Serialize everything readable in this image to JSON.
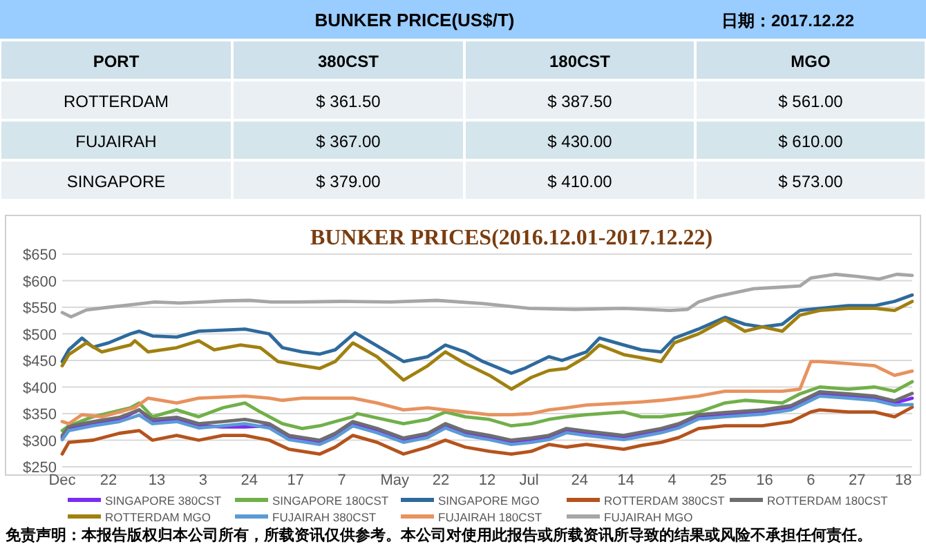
{
  "chart_data": [
    {
      "type": "other",
      "title": "BUNKER  PRICE(US$/T)",
      "subtitle": "日期：2017.12.22",
      "xlabel": "PORT",
      "categories": [
        "ROTTERDAM",
        "FUJAIRAH",
        "SINGAPORE"
      ],
      "series": [
        {
          "name": "380CST",
          "colors": [
            "#e9eff3",
            "#d5e5ec",
            "#e9eff3"
          ],
          "values": [
            361.5,
            367,
            379
          ],
          "value_labels": [
            "$ 361.50",
            "$ 367.00",
            "$ 379.00"
          ]
        },
        {
          "name": "180CST",
          "colors": [
            "#e9eff3",
            "#d5e5ec",
            "#e9eff3"
          ],
          "values": [
            387.5,
            430,
            410
          ],
          "value_labels": [
            "$ 387.50",
            "$ 430.00",
            "$ 410.00"
          ]
        },
        {
          "name": "MGO",
          "colors": [
            "#e9eff3",
            "#d5e5ec",
            "#e9eff3"
          ],
          "values": [
            561,
            610,
            573
          ],
          "value_labels": [
            "$ 561.00",
            "$ 610.00",
            "$ 573.00"
          ]
        }
      ]
    },
    {
      "type": "line",
      "title": "BUNKER PRICES(2016.12.01-2017.12.22)",
      "xlim": [
        "2016-12-01",
        "2017-12-22"
      ],
      "ylim": [
        250,
        650
      ],
      "grid": "y",
      "legend": "bottom",
      "xticks": [
        {
          "value": "2016-12-01",
          "label": "Dec"
        },
        {
          "value": "2016-12-22",
          "label": "22"
        },
        {
          "value": "2017-01-13",
          "label": "13"
        },
        {
          "value": "2017-02-03",
          "label": "3"
        },
        {
          "value": "2017-02-24",
          "label": "24"
        },
        {
          "value": "2017-03-17",
          "label": "17"
        },
        {
          "value": "2017-04-07",
          "label": "7"
        },
        {
          "value": "2017-05-01",
          "label": "May"
        },
        {
          "value": "2017-05-22",
          "label": "22"
        },
        {
          "value": "2017-06-12",
          "label": "12"
        },
        {
          "value": "2017-07-01",
          "label": "Jul"
        },
        {
          "value": "2017-07-24",
          "label": "24"
        },
        {
          "value": "2017-08-14",
          "label": "14"
        },
        {
          "value": "2017-09-04",
          "label": "4"
        },
        {
          "value": "2017-09-25",
          "label": "25"
        },
        {
          "value": "2017-10-16",
          "label": "16"
        },
        {
          "value": "2017-11-06",
          "label": "6"
        },
        {
          "value": "2017-11-27",
          "label": "27"
        },
        {
          "value": "2017-12-18",
          "label": "18"
        }
      ],
      "yticks": [
        {
          "value": 250,
          "label": "$250"
        },
        {
          "value": 300,
          "label": "$300"
        },
        {
          "value": 350,
          "label": "$350"
        },
        {
          "value": 400,
          "label": "$400"
        },
        {
          "value": 450,
          "label": "$450"
        },
        {
          "value": 500,
          "label": "$500"
        },
        {
          "value": 550,
          "label": "$550"
        },
        {
          "value": 600,
          "label": "$600"
        },
        {
          "value": 650,
          "label": "$650"
        }
      ],
      "annotations": [
        "免责声明：本报告版权归本公司所有，所载资讯仅供参考。本公司对使用此报告或所载资讯所导致的结果或风险不承担任何责任。"
      ],
      "series": [
        {
          "name": "SINGAPORE 380CST",
          "color": "#7b2cf0",
          "x": [
            "2016-12-01",
            "2016-12-04",
            "2016-12-15",
            "2016-12-27",
            "2017-01-05",
            "2017-01-11",
            "2017-01-22",
            "2017-02-01",
            "2017-02-12",
            "2017-02-22",
            "2017-03-05",
            "2017-03-14",
            "2017-03-28",
            "2017-04-04",
            "2017-04-12",
            "2017-04-23",
            "2017-05-05",
            "2017-05-16",
            "2017-05-24",
            "2017-06-02",
            "2017-06-13",
            "2017-06-23",
            "2017-07-02",
            "2017-07-10",
            "2017-07-18",
            "2017-07-27",
            "2017-08-13",
            "2017-08-21",
            "2017-08-30",
            "2017-09-07",
            "2017-09-16",
            "2017-09-28",
            "2017-10-15",
            "2017-10-28",
            "2017-11-06",
            "2017-11-10",
            "2017-11-23",
            "2017-12-05",
            "2017-12-14",
            "2017-12-22"
          ],
          "values": [
            305,
            322,
            331,
            339,
            357,
            335,
            339,
            327,
            325,
            325,
            327,
            305,
            296,
            309,
            331,
            318,
            300,
            309,
            327,
            313,
            305,
            296,
            300,
            305,
            318,
            313,
            305,
            311,
            318,
            327,
            344,
            348,
            353,
            361,
            379,
            387,
            383,
            379,
            370,
            379
          ]
        },
        {
          "name": "SINGAPORE 180CST",
          "color": "#70b04a",
          "x": [
            "2016-12-01",
            "2016-12-04",
            "2016-12-15",
            "2017-01-01",
            "2017-01-05",
            "2017-01-11",
            "2017-01-22",
            "2017-02-01",
            "2017-02-12",
            "2017-02-22",
            "2017-03-01",
            "2017-03-11",
            "2017-03-20",
            "2017-03-28",
            "2017-04-04",
            "2017-04-12",
            "2017-04-14",
            "2017-05-05",
            "2017-05-16",
            "2017-05-24",
            "2017-06-02",
            "2017-06-13",
            "2017-06-23",
            "2017-07-02",
            "2017-07-10",
            "2017-07-18",
            "2017-07-27",
            "2017-08-13",
            "2017-08-21",
            "2017-08-30",
            "2017-09-16",
            "2017-09-28",
            "2017-10-07",
            "2017-10-24",
            "2017-11-01",
            "2017-11-10",
            "2017-11-23",
            "2017-12-05",
            "2017-12-14",
            "2017-12-22"
          ],
          "values": [
            318,
            327,
            344,
            361,
            370,
            344,
            357,
            344,
            361,
            370,
            353,
            331,
            322,
            327,
            335,
            344,
            350,
            331,
            339,
            353,
            344,
            339,
            327,
            331,
            339,
            344,
            348,
            353,
            344,
            344,
            353,
            370,
            375,
            370,
            387,
            400,
            396,
            400,
            392,
            410
          ]
        },
        {
          "name": "SINGAPORE MGO",
          "color": "#2e6a9c",
          "x": [
            "2016-12-01",
            "2016-12-04",
            "2016-12-10",
            "2016-12-15",
            "2016-12-22",
            "2017-01-01",
            "2017-01-05",
            "2017-01-11",
            "2017-01-22",
            "2017-02-01",
            "2017-02-12",
            "2017-02-22",
            "2017-03-05",
            "2017-03-11",
            "2017-03-20",
            "2017-03-28",
            "2017-04-04",
            "2017-04-13",
            "2017-05-05",
            "2017-05-16",
            "2017-05-24",
            "2017-06-02",
            "2017-06-10",
            "2017-06-23",
            "2017-06-29",
            "2017-07-10",
            "2017-07-16",
            "2017-07-27",
            "2017-08-02",
            "2017-08-13",
            "2017-08-21",
            "2017-08-30",
            "2017-09-05",
            "2017-09-16",
            "2017-09-28",
            "2017-10-07",
            "2017-10-15",
            "2017-10-24",
            "2017-11-01",
            "2017-11-10",
            "2017-11-23",
            "2017-12-05",
            "2017-12-14",
            "2017-12-22"
          ],
          "values": [
            448,
            470,
            492,
            475,
            483,
            500,
            505,
            496,
            494,
            505,
            507,
            509,
            500,
            474,
            466,
            462,
            470,
            502,
            448,
            457,
            479,
            466,
            448,
            426,
            435,
            457,
            450,
            466,
            492,
            479,
            470,
            466,
            492,
            509,
            531,
            518,
            513,
            518,
            544,
            548,
            553,
            553,
            561,
            573
          ]
        },
        {
          "name": "ROTTERDAM 380CST",
          "color": "#b5531c",
          "x": [
            "2016-12-01",
            "2016-12-04",
            "2016-12-15",
            "2016-12-27",
            "2017-01-05",
            "2017-01-11",
            "2017-01-22",
            "2017-02-01",
            "2017-02-12",
            "2017-02-22",
            "2017-03-05",
            "2017-03-14",
            "2017-03-28",
            "2017-04-04",
            "2017-04-12",
            "2017-04-23",
            "2017-05-05",
            "2017-05-16",
            "2017-05-24",
            "2017-06-02",
            "2017-06-13",
            "2017-06-23",
            "2017-07-02",
            "2017-07-10",
            "2017-07-18",
            "2017-07-27",
            "2017-08-13",
            "2017-08-21",
            "2017-08-30",
            "2017-09-07",
            "2017-09-16",
            "2017-09-28",
            "2017-10-15",
            "2017-10-28",
            "2017-11-06",
            "2017-11-10",
            "2017-11-23",
            "2017-12-05",
            "2017-12-14",
            "2017-12-22"
          ],
          "values": [
            274,
            296,
            300,
            313,
            318,
            300,
            309,
            300,
            309,
            309,
            300,
            283,
            274,
            287,
            309,
            296,
            274,
            287,
            300,
            287,
            279,
            274,
            279,
            292,
            287,
            292,
            283,
            290,
            296,
            305,
            322,
            327,
            327,
            335,
            353,
            357,
            353,
            353,
            344,
            362
          ]
        },
        {
          "name": "ROTTERDAM 180CST",
          "color": "#6e6e6e",
          "x": [
            "2016-12-01",
            "2016-12-04",
            "2016-12-15",
            "2016-12-27",
            "2017-01-05",
            "2017-01-11",
            "2017-01-22",
            "2017-02-01",
            "2017-02-12",
            "2017-02-22",
            "2017-03-05",
            "2017-03-14",
            "2017-03-28",
            "2017-04-04",
            "2017-04-12",
            "2017-04-23",
            "2017-05-05",
            "2017-05-16",
            "2017-05-24",
            "2017-06-02",
            "2017-06-13",
            "2017-06-23",
            "2017-07-02",
            "2017-07-10",
            "2017-07-18",
            "2017-07-27",
            "2017-08-13",
            "2017-08-21",
            "2017-08-30",
            "2017-09-07",
            "2017-09-16",
            "2017-09-28",
            "2017-10-15",
            "2017-10-28",
            "2017-11-06",
            "2017-11-10",
            "2017-11-23",
            "2017-12-05",
            "2017-12-14",
            "2017-12-22"
          ],
          "values": [
            309,
            326,
            335,
            343,
            357,
            339,
            343,
            331,
            335,
            339,
            331,
            309,
            300,
            313,
            335,
            322,
            304,
            313,
            331,
            317,
            309,
            300,
            304,
            309,
            322,
            317,
            309,
            315,
            322,
            331,
            348,
            352,
            357,
            365,
            383,
            391,
            387,
            383,
            374,
            388
          ]
        },
        {
          "name": "ROTTERDAM MGO",
          "color": "#a08010",
          "x": [
            "2016-12-01",
            "2016-12-04",
            "2016-12-12",
            "2016-12-19",
            "2017-01-01",
            "2017-01-03",
            "2017-01-09",
            "2017-01-22",
            "2017-02-01",
            "2017-02-08",
            "2017-02-20",
            "2017-03-01",
            "2017-03-09",
            "2017-03-20",
            "2017-03-28",
            "2017-04-04",
            "2017-04-12",
            "2017-04-23",
            "2017-05-05",
            "2017-05-16",
            "2017-05-24",
            "2017-06-02",
            "2017-06-13",
            "2017-06-23",
            "2017-07-02",
            "2017-07-10",
            "2017-07-18",
            "2017-07-27",
            "2017-08-02",
            "2017-08-13",
            "2017-08-21",
            "2017-08-30",
            "2017-09-05",
            "2017-09-16",
            "2017-09-28",
            "2017-10-07",
            "2017-10-15",
            "2017-10-24",
            "2017-11-01",
            "2017-11-10",
            "2017-11-23",
            "2017-12-05",
            "2017-12-14",
            "2017-12-22"
          ],
          "values": [
            440,
            461,
            483,
            466,
            479,
            487,
            466,
            474,
            487,
            470,
            479,
            474,
            448,
            440,
            435,
            448,
            483,
            457,
            413,
            440,
            466,
            444,
            422,
            396,
            418,
            431,
            435,
            457,
            479,
            461,
            455,
            448,
            483,
            500,
            527,
            505,
            513,
            505,
            535,
            544,
            548,
            548,
            544,
            561
          ]
        },
        {
          "name": "FUJAIRAH 380CST",
          "color": "#5b9bd5",
          "x": [
            "2016-12-01",
            "2016-12-04",
            "2016-12-15",
            "2016-12-27",
            "2017-01-05",
            "2017-01-11",
            "2017-01-22",
            "2017-02-01",
            "2017-02-12",
            "2017-02-22",
            "2017-03-05",
            "2017-03-14",
            "2017-03-28",
            "2017-04-04",
            "2017-04-12",
            "2017-04-23",
            "2017-05-05",
            "2017-05-16",
            "2017-05-24",
            "2017-06-02",
            "2017-06-13",
            "2017-06-23",
            "2017-07-02",
            "2017-07-10",
            "2017-07-18",
            "2017-07-27",
            "2017-08-13",
            "2017-08-21",
            "2017-08-30",
            "2017-09-07",
            "2017-09-16",
            "2017-09-28",
            "2017-10-15",
            "2017-10-28",
            "2017-11-06",
            "2017-11-10",
            "2017-11-23",
            "2017-12-05",
            "2017-12-14",
            "2017-12-22"
          ],
          "values": [
            301,
            318,
            327,
            335,
            347,
            331,
            335,
            323,
            327,
            331,
            323,
            301,
            292,
            305,
            327,
            314,
            296,
            305,
            323,
            309,
            301,
            292,
            296,
            301,
            314,
            309,
            301,
            307,
            314,
            323,
            340,
            344,
            349,
            357,
            375,
            383,
            379,
            375,
            366,
            367
          ]
        },
        {
          "name": "FUJAIRAH 180CST",
          "color": "#e8925e",
          "x": [
            "2016-12-01",
            "2016-12-04",
            "2016-12-10",
            "2016-12-19",
            "2017-01-03",
            "2017-01-09",
            "2017-01-22",
            "2017-02-01",
            "2017-02-22",
            "2017-03-05",
            "2017-03-11",
            "2017-03-20",
            "2017-04-04",
            "2017-04-12",
            "2017-04-23",
            "2017-05-05",
            "2017-05-16",
            "2017-05-24",
            "2017-06-02",
            "2017-06-13",
            "2017-06-23",
            "2017-07-02",
            "2017-07-10",
            "2017-07-18",
            "2017-07-27",
            "2017-08-13",
            "2017-08-21",
            "2017-08-30",
            "2017-09-16",
            "2017-09-28",
            "2017-10-24",
            "2017-11-01",
            "2017-11-06",
            "2017-11-10",
            "2017-11-23",
            "2017-12-05",
            "2017-12-14",
            "2017-12-22"
          ],
          "values": [
            335,
            331,
            348,
            344,
            361,
            379,
            370,
            379,
            383,
            379,
            375,
            379,
            379,
            379,
            370,
            357,
            361,
            357,
            353,
            348,
            348,
            350,
            357,
            361,
            366,
            370,
            372,
            375,
            383,
            392,
            392,
            396,
            448,
            448,
            444,
            440,
            422,
            430
          ]
        },
        {
          "name": "FUJAIRAH MGO",
          "color": "#a6a6a6",
          "x": [
            "2016-12-01",
            "2016-12-05",
            "2016-12-12",
            "2016-12-22",
            "2017-01-02",
            "2017-01-12",
            "2017-01-23",
            "2017-02-03",
            "2017-02-13",
            "2017-02-24",
            "2017-03-06",
            "2017-03-17",
            "2017-04-07",
            "2017-04-29",
            "2017-05-20",
            "2017-06-10",
            "2017-07-01",
            "2017-07-22",
            "2017-08-13",
            "2017-09-03",
            "2017-09-11",
            "2017-09-16",
            "2017-09-24",
            "2017-10-11",
            "2017-10-24",
            "2017-11-01",
            "2017-11-06",
            "2017-11-17",
            "2017-11-27",
            "2017-12-07",
            "2017-12-15",
            "2017-12-22"
          ],
          "values": [
            540,
            532,
            545,
            550,
            555,
            560,
            558,
            560,
            562,
            563,
            560,
            560,
            561,
            560,
            563,
            557,
            548,
            546,
            548,
            544,
            546,
            560,
            570,
            585,
            588,
            590,
            605,
            612,
            608,
            603,
            612,
            610
          ]
        }
      ]
    }
  ]
}
